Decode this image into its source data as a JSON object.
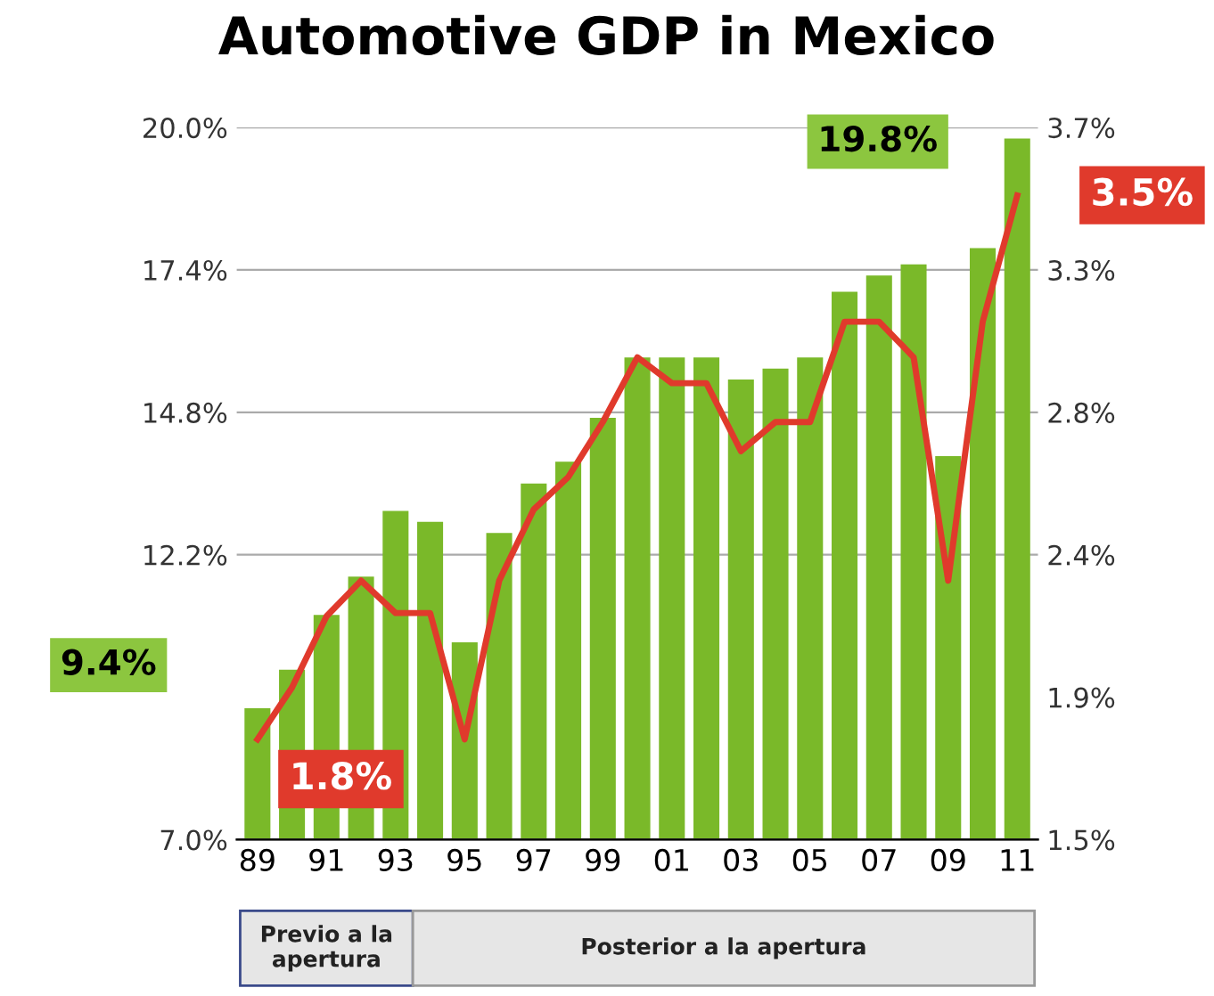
{
  "chart_data": {
    "type": "bar",
    "title": "Automotive GDP in Mexico",
    "categories": [
      "89",
      null,
      "91",
      null,
      "93",
      null,
      "95",
      null,
      "97",
      null,
      "99",
      null,
      "01",
      null,
      "03",
      null,
      "05",
      null,
      "07",
      null,
      "09",
      null,
      "11"
    ],
    "series": [
      {
        "color": "#7ab929",
        "values": [
          9.4,
          10.1,
          11.1,
          11.8,
          13.0,
          12.8,
          10.6,
          12.6,
          13.5,
          13.9,
          14.7,
          15.8,
          15.8,
          15.8,
          15.4,
          15.6,
          15.8,
          17.0,
          17.3,
          17.5,
          14.0,
          17.8,
          19.8
        ]
      },
      {
        "type": "line",
        "axis": "y2",
        "color": "#e03a2c",
        "values": [
          1.81,
          1.97,
          2.19,
          2.3,
          2.2,
          2.2,
          1.81,
          2.3,
          2.52,
          2.62,
          2.79,
          2.99,
          2.91,
          2.91,
          2.7,
          2.79,
          2.79,
          3.1,
          3.1,
          2.99,
          2.3,
          3.1,
          3.49
        ]
      }
    ],
    "ylim": [
      7.0,
      20.0
    ],
    "yticks": [
      {
        "value": 7.0,
        "label": "7.0%"
      },
      {
        "value": 12.2,
        "label": "12.2%"
      },
      {
        "value": 14.8,
        "label": "14.8%"
      },
      {
        "value": 17.4,
        "label": "17.4%"
      },
      {
        "value": 20.0,
        "label": "20.0%"
      }
    ],
    "y2lim": [
      1.5,
      3.7
    ],
    "y2ticks": [
      {
        "value": 1.5,
        "label": "1.5%"
      },
      {
        "value": 1.94,
        "label": "1.9%"
      },
      {
        "value": 2.38,
        "label": "2.4%"
      },
      {
        "value": 2.82,
        "label": "2.8%"
      },
      {
        "value": 3.26,
        "label": "3.3%"
      },
      {
        "value": 3.7,
        "label": "3.7%"
      }
    ],
    "grid": "y",
    "annotations": [
      "9.4%",
      "19.8%",
      "1.8%",
      "3.5%",
      "Previo a la apertura",
      "Posterior a la apertura"
    ]
  }
}
